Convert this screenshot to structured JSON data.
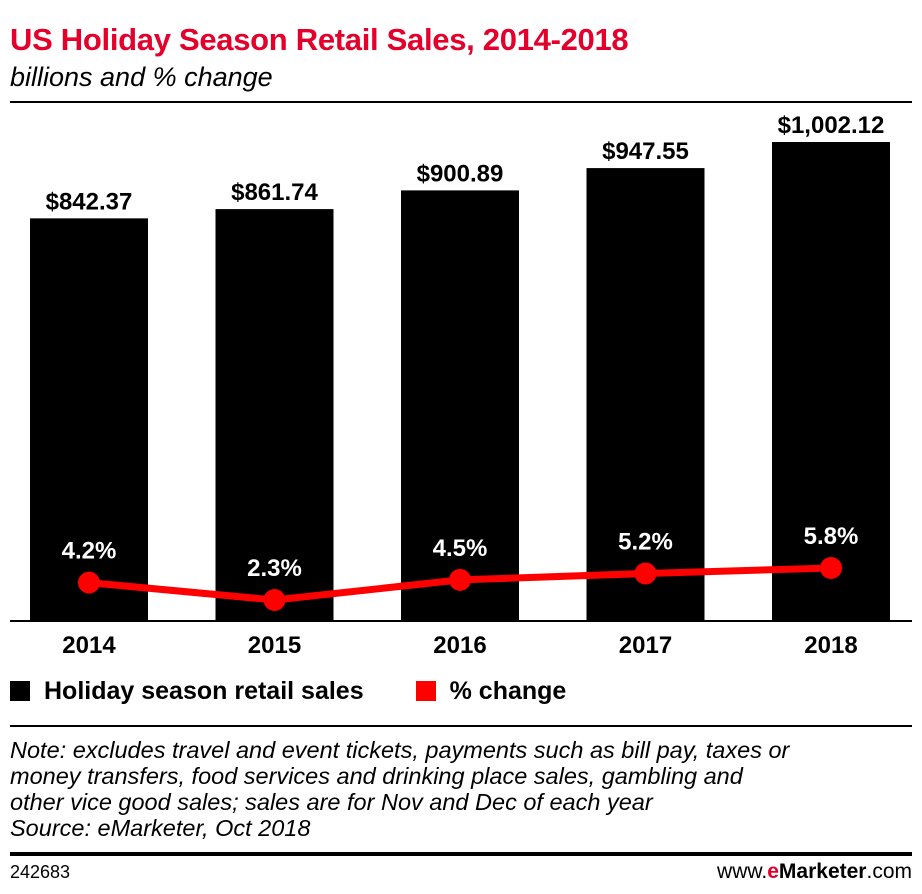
{
  "header": {
    "title": "US Holiday Season Retail Sales, 2014-2018",
    "subtitle": "billions and % change"
  },
  "chart_data": {
    "type": "bar",
    "categories": [
      "2014",
      "2015",
      "2016",
      "2017",
      "2018"
    ],
    "series": [
      {
        "name": "Holiday season retail sales",
        "type": "bar",
        "values": [
          842.37,
          861.74,
          900.89,
          947.55,
          1002.12
        ],
        "labels": [
          "$842.37",
          "$861.74",
          "$900.89",
          "$947.55",
          "$1,002.12"
        ],
        "color": "#000000"
      },
      {
        "name": "% change",
        "type": "line",
        "values": [
          4.2,
          2.3,
          4.5,
          5.2,
          5.8
        ],
        "labels": [
          "4.2%",
          "2.3%",
          "4.5%",
          "5.2%",
          "5.8%"
        ],
        "color": "#ff0000"
      }
    ],
    "ylim": [
      0,
      1002.12
    ],
    "grid": false,
    "legend_position": "bottom-left"
  },
  "legend": {
    "bars_label": "Holiday season retail sales",
    "line_label": "% change"
  },
  "note": {
    "lines": [
      "Note: excludes travel and event tickets, payments such as bill pay, taxes or",
      "money transfers, food services and drinking place sales, gambling and",
      "other vice good sales; sales are for Nov and Dec of each year",
      "Source: eMarketer, Oct 2018"
    ]
  },
  "footer": {
    "chart_id": "242683",
    "brand_prefix": "www.",
    "brand_e": "e",
    "brand_marketer": "Marketer",
    "brand_suffix": ".com"
  },
  "colors": {
    "title": "#e4002b",
    "bar": "#000000",
    "line": "#ff0000"
  }
}
